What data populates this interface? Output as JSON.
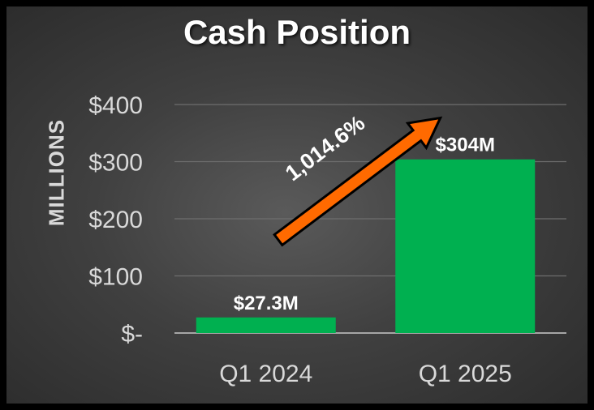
{
  "chart_data": {
    "type": "bar",
    "title": "Cash Position",
    "ylabel": "MILLIONS",
    "xlabel": "",
    "categories": [
      "Q1 2024",
      "Q1 2025"
    ],
    "values": [
      27.3,
      304
    ],
    "data_labels": [
      "$27.3M",
      "$304M"
    ],
    "yticks": [
      0,
      100,
      200,
      300,
      400
    ],
    "ytick_labels": [
      "$-",
      "$100",
      "$200",
      "$300",
      "$400"
    ],
    "ylim": [
      0,
      400
    ],
    "grid": true,
    "annotation": {
      "text": "1,014.6%",
      "type": "growth-arrow"
    },
    "colors": {
      "bar": "#00b050",
      "arrow": "#ff6a00",
      "arrow_outline": "#000000",
      "gridline": "#6e6e6e",
      "axis_text": "#d9d9d9",
      "title": "#ffffff"
    }
  }
}
